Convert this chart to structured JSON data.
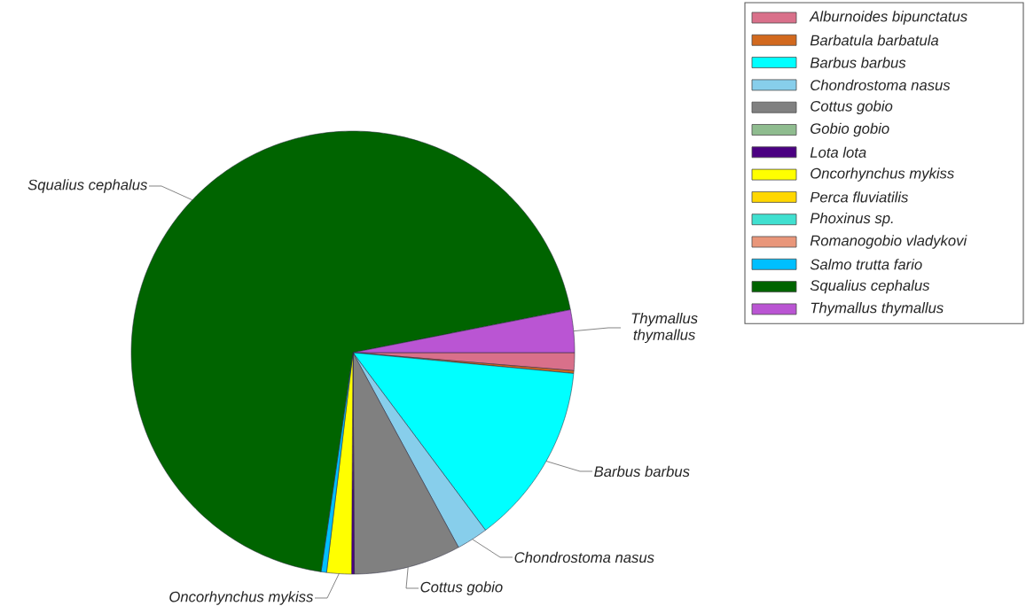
{
  "chart_data": {
    "type": "pie",
    "categories": [
      "Alburnoides bipunctatus",
      "Barbatula barbatula",
      "Barbus barbus",
      "Chondrostoma nasus",
      "Cottus gobio",
      "Gobio gobio",
      "Lota lota",
      "Oncorhynchus mykiss",
      "Perca fluviatilis",
      "Phoxinus sp.",
      "Romanogobio vladykovi",
      "Salmo trutta fario",
      "Squalius cephalus",
      "Thymallus thymallus"
    ],
    "values": [
      1.3,
      0.2,
      13.3,
      2.3,
      7.8,
      null,
      0.2,
      1.8,
      null,
      null,
      null,
      0.4,
      69.6,
      3.1
    ],
    "colors": [
      "#d9708a",
      "#d2691e",
      "#00ffff",
      "#87ceeb",
      "#808080",
      "#8fbc8f",
      "#4b0082",
      "#ffff00",
      "#ffd700",
      "#40e0d0",
      "#e9967a",
      "#00bfff",
      "#006400",
      "#ba55d3"
    ],
    "legend": "top right",
    "annotations": [
      "Squalius cephalus",
      "Thymallus thymallus",
      "Barbus barbus",
      "Chondrostoma nasus",
      "Cottus gobio",
      "Oncorhynchus mykiss"
    ]
  }
}
